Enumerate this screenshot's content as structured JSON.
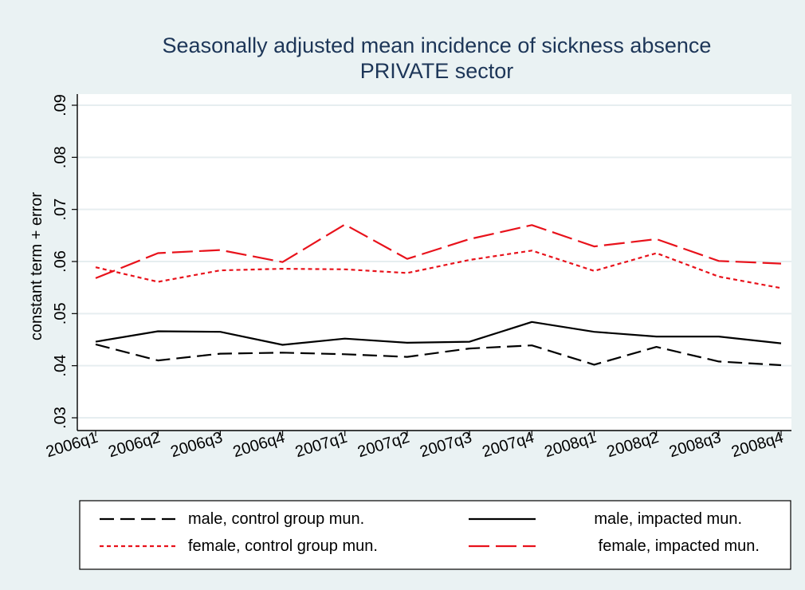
{
  "chart_data": {
    "type": "line",
    "title": "Seasonally adjusted mean incidence of sickness absence",
    "subtitle": "PRIVATE sector",
    "xlabel": "",
    "ylabel": "constant term + error",
    "ylim": [
      0.03,
      0.09
    ],
    "yticks": [
      0.03,
      0.04,
      0.05,
      0.06,
      0.07,
      0.08,
      0.09
    ],
    "ytick_labels": [
      ".03",
      ".04",
      ".05",
      ".06",
      ".07",
      ".08",
      ".09"
    ],
    "grid": true,
    "legend_position": "bottom",
    "categories": [
      "2006q1",
      "2006q2",
      "2006q3",
      "2006q4",
      "2007q1",
      "2007q2",
      "2007q3",
      "2007q4",
      "2008q1",
      "2008q2",
      "2008q3",
      "2008q4"
    ],
    "series": [
      {
        "name": "male, control group mun.",
        "color": "#000000",
        "dash": "18 8",
        "values": [
          0.0441,
          0.041,
          0.0423,
          0.0425,
          0.0422,
          0.0417,
          0.0433,
          0.0439,
          0.0402,
          0.0436,
          0.0408,
          0.0401
        ]
      },
      {
        "name": "male, impacted mun.",
        "color": "#000000",
        "dash": "",
        "values": [
          0.0446,
          0.0466,
          0.0465,
          0.044,
          0.0452,
          0.0444,
          0.0446,
          0.0484,
          0.0465,
          0.0456,
          0.0456,
          0.0443
        ]
      },
      {
        "name": "female, control group mun.",
        "color": "#e8121b",
        "dash": "5 4",
        "values": [
          0.0589,
          0.0561,
          0.0583,
          0.0586,
          0.0585,
          0.0578,
          0.0603,
          0.0621,
          0.0582,
          0.0616,
          0.0571,
          0.0549
        ]
      },
      {
        "name": "female, impacted mun.",
        "color": "#e8121b",
        "dash": "26 8",
        "values": [
          0.0568,
          0.0616,
          0.0622,
          0.0599,
          0.0671,
          0.0605,
          0.0643,
          0.067,
          0.0629,
          0.0643,
          0.0601,
          0.0596
        ]
      }
    ]
  }
}
